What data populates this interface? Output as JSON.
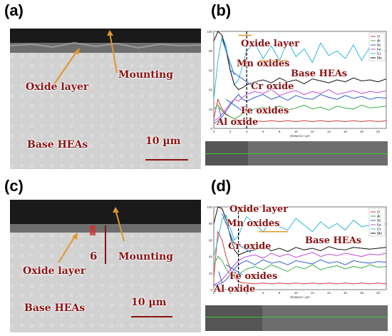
{
  "panels": {
    "a": {
      "letter": "(a)",
      "labels": {
        "mounting": "Mounting",
        "oxide_layer": "Oxide layer",
        "base": "Base HEAs",
        "scale": "10 µm"
      }
    },
    "b": {
      "letter": "(b)",
      "labels": {
        "oxide_layer": "Oxide layer",
        "mn": "Mn oxides",
        "base": "Base HEAs",
        "cr": "Cr oxide",
        "fe": "Fe oxides",
        "al": "Al oxide"
      }
    },
    "c": {
      "letter": "(c)",
      "labels": {
        "six": "6",
        "mounting": "Mounting",
        "oxide_layer": "Oxide layer",
        "base": "Base HEAs",
        "scale": "10 µm"
      }
    },
    "d": {
      "letter": "(d)",
      "labels": {
        "oxide_layer": "Oxide layer",
        "mn": "Mn oxides",
        "base": "Base HEAs",
        "cr": "Cr oxide",
        "fe": "Fe oxides",
        "al": "Al oxide"
      }
    }
  },
  "colors": {
    "annotation": "#8b1212",
    "arrow_orange": "#e0962b",
    "arrow_blue": "#3b7fd6",
    "line_dashed": "#000000"
  },
  "chart_data": [
    {
      "type": "line",
      "panel": "b",
      "xlabel": "Distance / µm",
      "xlim": [
        0,
        21
      ],
      "ylim": [
        0,
        100
      ],
      "xticks": [
        "0",
        "2",
        "4",
        "6",
        "8",
        "10",
        "12",
        "14",
        "16",
        "18",
        "20"
      ],
      "yticks": [
        "0",
        "20",
        "40",
        "60",
        "80",
        "100"
      ],
      "boundary_x": 4,
      "legend": [
        "O",
        "Al",
        "Ni",
        "Fe",
        "Cr",
        "Mn"
      ],
      "series": [
        {
          "name": "O",
          "color": "#d63a3a",
          "x": [
            0,
            0.5,
            1,
            1.5,
            2,
            2.5,
            3,
            3.5,
            4,
            5,
            6,
            7,
            8,
            9,
            10,
            11,
            12,
            13,
            14,
            15,
            16,
            17,
            18,
            19,
            20,
            21
          ],
          "y": [
            10,
            30,
            20,
            15,
            12,
            10,
            8,
            8,
            7,
            8,
            7,
            8,
            7,
            8,
            7,
            8,
            7,
            8,
            7,
            8,
            7,
            8,
            7,
            8,
            7,
            8
          ]
        },
        {
          "name": "Al",
          "color": "#3cb043",
          "x": [
            0,
            0.5,
            1,
            1.5,
            2,
            2.5,
            3,
            3.5,
            4,
            5,
            6,
            7,
            8,
            9,
            10,
            11,
            12,
            13,
            14,
            15,
            16,
            17,
            18,
            19,
            20,
            21
          ],
          "y": [
            20,
            24,
            18,
            14,
            12,
            10,
            12,
            15,
            18,
            20,
            22,
            20,
            23,
            19,
            21,
            24,
            20,
            22,
            19,
            23,
            21,
            20,
            24,
            21,
            22,
            23
          ]
        },
        {
          "name": "Ni",
          "color": "#2f5fd0",
          "x": [
            0,
            0.5,
            1,
            1.5,
            2,
            2.5,
            3,
            3.5,
            4,
            5,
            6,
            7,
            8,
            9,
            10,
            11,
            12,
            13,
            14,
            15,
            16,
            17,
            18,
            19,
            20,
            21
          ],
          "y": [
            5,
            8,
            12,
            18,
            24,
            30,
            35,
            30,
            28,
            32,
            35,
            30,
            33,
            29,
            34,
            31,
            30,
            35,
            32,
            30,
            34,
            31,
            33,
            30,
            32,
            31
          ]
        },
        {
          "name": "Fe",
          "color": "#c04bd6",
          "x": [
            0,
            0.5,
            1,
            1.5,
            2,
            2.5,
            3,
            3.5,
            4,
            5,
            6,
            7,
            8,
            9,
            10,
            11,
            12,
            13,
            14,
            15,
            16,
            17,
            18,
            19,
            20,
            21
          ],
          "y": [
            8,
            10,
            15,
            20,
            26,
            30,
            28,
            32,
            35,
            38,
            36,
            40,
            34,
            37,
            39,
            35,
            38,
            36,
            40,
            35,
            37,
            39,
            36,
            38,
            37,
            39
          ]
        },
        {
          "name": "Cr",
          "color": "#2fb8d8",
          "x": [
            0,
            0.5,
            1,
            1.5,
            2,
            2.5,
            3,
            3.5,
            4,
            5,
            6,
            7,
            8,
            9,
            10,
            11,
            12,
            13,
            14,
            15,
            16,
            17,
            18,
            19,
            20,
            21
          ],
          "y": [
            30,
            70,
            95,
            85,
            60,
            45,
            50,
            65,
            80,
            88,
            72,
            85,
            70,
            90,
            74,
            82,
            68,
            88,
            75,
            80,
            72,
            86,
            70,
            84,
            78,
            80
          ]
        },
        {
          "name": "Mn",
          "color": "#111111",
          "x": [
            0,
            0.5,
            1,
            1.5,
            2,
            2.5,
            3,
            3.5,
            4,
            5,
            6,
            7,
            8,
            9,
            10,
            11,
            12,
            13,
            14,
            15,
            16,
            17,
            18,
            19,
            20,
            21
          ],
          "y": [
            90,
            100,
            96,
            80,
            60,
            45,
            40,
            42,
            45,
            48,
            50,
            47,
            52,
            48,
            50,
            46,
            51,
            49,
            47,
            50,
            48,
            52,
            49,
            50,
            48,
            51
          ]
        }
      ]
    },
    {
      "type": "line",
      "panel": "d",
      "xlabel": "Distance / µm",
      "xlim": [
        0,
        21
      ],
      "ylim": [
        0,
        100
      ],
      "xticks": [
        "0",
        "2",
        "4",
        "6",
        "8",
        "10",
        "12",
        "14",
        "16",
        "18",
        "20"
      ],
      "yticks": [
        "0",
        "20",
        "40",
        "60",
        "80",
        "100"
      ],
      "boundary_x": 3,
      "legend": [
        "O",
        "Al",
        "Ni",
        "Fe",
        "Cr",
        "Mn"
      ],
      "series": [
        {
          "name": "O",
          "color": "#d63a3a",
          "x": [
            0,
            0.5,
            1,
            1.5,
            2,
            2.5,
            3,
            3.5,
            4,
            5,
            6,
            7,
            8,
            9,
            10,
            11,
            12,
            13,
            14,
            15,
            16,
            17,
            18,
            19,
            20,
            21
          ],
          "y": [
            15,
            70,
            60,
            40,
            25,
            15,
            10,
            8,
            8,
            7,
            8,
            7,
            8,
            7,
            8,
            7,
            8,
            7,
            8,
            7,
            8,
            7,
            8,
            7,
            8,
            7
          ]
        },
        {
          "name": "Al",
          "color": "#3cb043",
          "x": [
            0,
            0.5,
            1,
            1.5,
            2,
            2.5,
            3,
            3.5,
            4,
            5,
            6,
            7,
            8,
            9,
            10,
            11,
            12,
            13,
            14,
            15,
            16,
            17,
            18,
            19,
            20,
            21
          ],
          "y": [
            30,
            40,
            35,
            25,
            18,
            15,
            18,
            22,
            25,
            28,
            24,
            30,
            26,
            22,
            28,
            25,
            30,
            24,
            27,
            29,
            25,
            28,
            26,
            30,
            27,
            28
          ]
        },
        {
          "name": "Ni",
          "color": "#2f5fd0",
          "x": [
            0,
            0.5,
            1,
            1.5,
            2,
            2.5,
            3,
            3.5,
            4,
            5,
            6,
            7,
            8,
            9,
            10,
            11,
            12,
            13,
            14,
            15,
            16,
            17,
            18,
            19,
            20,
            21
          ],
          "y": [
            5,
            6,
            8,
            12,
            18,
            25,
            30,
            33,
            35,
            30,
            36,
            32,
            34,
            30,
            35,
            33,
            31,
            36,
            32,
            34,
            30,
            35,
            33,
            32,
            34,
            33
          ]
        },
        {
          "name": "Fe",
          "color": "#c04bd6",
          "x": [
            0,
            0.5,
            1,
            1.5,
            2,
            2.5,
            3,
            3.5,
            4,
            5,
            6,
            7,
            8,
            9,
            10,
            11,
            12,
            13,
            14,
            15,
            16,
            17,
            18,
            19,
            20,
            21
          ],
          "y": [
            6,
            8,
            12,
            18,
            24,
            30,
            35,
            38,
            40,
            42,
            38,
            44,
            40,
            43,
            39,
            42,
            45,
            40,
            43,
            41,
            44,
            42,
            40,
            43,
            42,
            44
          ]
        },
        {
          "name": "Cr",
          "color": "#2fb8d8",
          "x": [
            0,
            0.5,
            1,
            1.5,
            2,
            2.5,
            3,
            3.5,
            4,
            5,
            6,
            7,
            8,
            9,
            10,
            11,
            12,
            13,
            14,
            15,
            16,
            17,
            18,
            19,
            20,
            21
          ],
          "y": [
            40,
            60,
            85,
            90,
            75,
            60,
            65,
            78,
            88,
            80,
            70,
            84,
            76,
            72,
            86,
            78,
            70,
            82,
            74,
            80,
            72,
            84,
            76,
            78,
            74,
            80
          ]
        },
        {
          "name": "Mn",
          "color": "#111111",
          "x": [
            0,
            0.5,
            1,
            1.5,
            2,
            2.5,
            3,
            3.5,
            4,
            5,
            6,
            7,
            8,
            9,
            10,
            11,
            12,
            13,
            14,
            15,
            16,
            17,
            18,
            19,
            20,
            21
          ],
          "y": [
            80,
            100,
            98,
            85,
            65,
            48,
            42,
            44,
            46,
            48,
            52,
            47,
            50,
            46,
            51,
            48,
            50,
            47,
            52,
            49,
            48,
            51,
            50,
            49,
            50,
            51
          ]
        }
      ]
    }
  ]
}
